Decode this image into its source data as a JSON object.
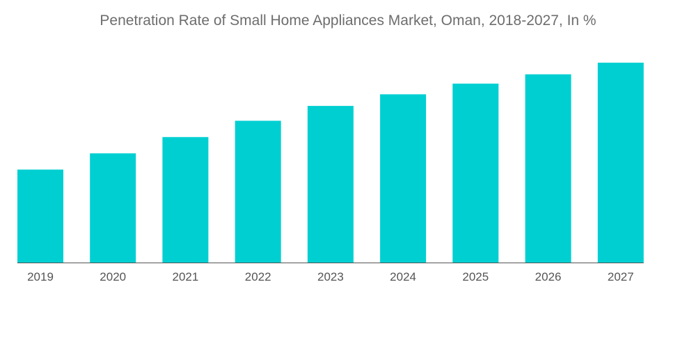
{
  "chart_data": {
    "type": "bar",
    "title": "Penetration Rate of Small Home Appliances Market, Oman, 2018-2027, In %",
    "categories": [
      "2019",
      "2020",
      "2021",
      "2022",
      "2023",
      "2024",
      "2025",
      "2026",
      "2027"
    ],
    "series": [
      {
        "name": "Penetration Rate",
        "values": [
          20,
          23.5,
          27,
          30.5,
          33.7,
          36.2,
          38.5,
          40.5,
          43
        ]
      }
    ],
    "xlabel": "",
    "ylabel": "",
    "ylim": [
      0,
      46
    ],
    "grid": false,
    "legend": "none",
    "bar_color": "#00cfd1",
    "axis_color": "#555555"
  }
}
